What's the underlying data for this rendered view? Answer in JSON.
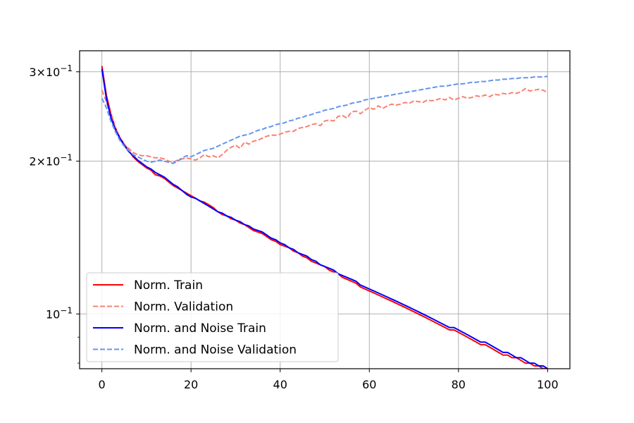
{
  "chart_data": {
    "type": "line",
    "title": "",
    "xlabel": "",
    "ylabel": "",
    "xlim": [
      -5,
      105
    ],
    "ylim": [
      0.078,
      0.33
    ],
    "yscale": "log",
    "grid": true,
    "legend_position": "lower-left",
    "x_ticks": [
      {
        "value": 0,
        "label": "0"
      },
      {
        "value": 20,
        "label": "20"
      },
      {
        "value": 40,
        "label": "40"
      },
      {
        "value": 60,
        "label": "60"
      },
      {
        "value": 80,
        "label": "80"
      },
      {
        "value": 100,
        "label": "100"
      }
    ],
    "y_ticks": [
      {
        "value": 0.1,
        "base": "10",
        "exp": "−1",
        "coef": ""
      },
      {
        "value": 0.2,
        "base": "10",
        "exp": "−1",
        "coef": "2"
      },
      {
        "value": 0.3,
        "base": "10",
        "exp": "−1",
        "coef": "3"
      }
    ],
    "y_minor_ticks": [
      0.08,
      0.09
    ],
    "x": [
      0,
      1,
      2,
      3,
      4,
      5,
      6,
      7,
      8,
      9,
      10,
      11,
      12,
      13,
      14,
      15,
      16,
      17,
      18,
      19,
      20,
      21,
      22,
      23,
      24,
      25,
      26,
      27,
      28,
      29,
      30,
      31,
      32,
      33,
      34,
      35,
      36,
      37,
      38,
      39,
      40,
      41,
      42,
      43,
      44,
      45,
      46,
      47,
      48,
      49,
      50,
      51,
      52,
      53,
      54,
      55,
      56,
      57,
      58,
      59,
      60,
      61,
      62,
      63,
      64,
      65,
      66,
      67,
      68,
      69,
      70,
      71,
      72,
      73,
      74,
      75,
      76,
      77,
      78,
      79,
      80,
      81,
      82,
      83,
      84,
      85,
      86,
      87,
      88,
      89,
      90,
      91,
      92,
      93,
      94,
      95,
      96,
      97,
      98,
      99,
      100
    ],
    "series": [
      {
        "name": "Norm. Train",
        "color": "#ff0000",
        "dash": "solid",
        "values": [
          0.308,
          0.27,
          0.248,
          0.233,
          0.223,
          0.216,
          0.21,
          0.204,
          0.2,
          0.197,
          0.194,
          0.192,
          0.188,
          0.187,
          0.185,
          0.182,
          0.179,
          0.177,
          0.175,
          0.173,
          0.171,
          0.169,
          0.167,
          0.166,
          0.164,
          0.162,
          0.159,
          0.157,
          0.156,
          0.154,
          0.153,
          0.151,
          0.15,
          0.148,
          0.146,
          0.145,
          0.144,
          0.142,
          0.14,
          0.139,
          0.137,
          0.136,
          0.135,
          0.133,
          0.132,
          0.13,
          0.129,
          0.127,
          0.126,
          0.125,
          0.124,
          0.122,
          0.121,
          0.12,
          0.118,
          0.117,
          0.116,
          0.115,
          0.113,
          0.112,
          0.111,
          0.11,
          0.109,
          0.108,
          0.107,
          0.106,
          0.105,
          0.104,
          0.103,
          0.102,
          0.101,
          0.1,
          0.099,
          0.098,
          0.097,
          0.096,
          0.095,
          0.094,
          0.093,
          0.093,
          0.092,
          0.091,
          0.09,
          0.089,
          0.088,
          0.087,
          0.087,
          0.086,
          0.085,
          0.084,
          0.083,
          0.083,
          0.082,
          0.082,
          0.081,
          0.08,
          0.08,
          0.079,
          0.079,
          0.078,
          0.078
        ]
      },
      {
        "name": "Norm. Validation",
        "color": "#fa8072",
        "dash": "dashed",
        "values": [
          0.276,
          0.262,
          0.246,
          0.233,
          0.223,
          0.216,
          0.212,
          0.208,
          0.206,
          0.205,
          0.205,
          0.204,
          0.203,
          0.203,
          0.202,
          0.2,
          0.199,
          0.201,
          0.202,
          0.203,
          0.202,
          0.201,
          0.203,
          0.206,
          0.204,
          0.205,
          0.203,
          0.206,
          0.21,
          0.213,
          0.215,
          0.212,
          0.218,
          0.216,
          0.219,
          0.22,
          0.222,
          0.224,
          0.225,
          0.225,
          0.226,
          0.228,
          0.229,
          0.229,
          0.232,
          0.233,
          0.234,
          0.236,
          0.237,
          0.235,
          0.24,
          0.241,
          0.24,
          0.245,
          0.246,
          0.243,
          0.25,
          0.251,
          0.248,
          0.252,
          0.255,
          0.253,
          0.257,
          0.254,
          0.257,
          0.259,
          0.258,
          0.259,
          0.261,
          0.26,
          0.263,
          0.262,
          0.261,
          0.264,
          0.263,
          0.264,
          0.266,
          0.264,
          0.267,
          0.264,
          0.266,
          0.268,
          0.266,
          0.267,
          0.269,
          0.268,
          0.27,
          0.268,
          0.271,
          0.27,
          0.272,
          0.271,
          0.273,
          0.272,
          0.274,
          0.278,
          0.275,
          0.276,
          0.277,
          0.276,
          0.273
        ]
      },
      {
        "name": "Norm. and Noise Train",
        "color": "#0000ff",
        "dash": "solid",
        "values": [
          0.304,
          0.266,
          0.244,
          0.231,
          0.222,
          0.215,
          0.209,
          0.205,
          0.201,
          0.198,
          0.195,
          0.193,
          0.19,
          0.188,
          0.186,
          0.183,
          0.18,
          0.178,
          0.175,
          0.172,
          0.17,
          0.169,
          0.167,
          0.165,
          0.163,
          0.161,
          0.159,
          0.158,
          0.156,
          0.155,
          0.153,
          0.152,
          0.15,
          0.149,
          0.147,
          0.146,
          0.145,
          0.143,
          0.141,
          0.14,
          0.138,
          0.137,
          0.135,
          0.134,
          0.132,
          0.131,
          0.13,
          0.128,
          0.127,
          0.125,
          0.124,
          0.123,
          0.122,
          0.12,
          0.119,
          0.118,
          0.117,
          0.116,
          0.114,
          0.113,
          0.112,
          0.111,
          0.11,
          0.109,
          0.108,
          0.107,
          0.106,
          0.105,
          0.104,
          0.103,
          0.102,
          0.101,
          0.1,
          0.099,
          0.098,
          0.097,
          0.096,
          0.095,
          0.094,
          0.094,
          0.093,
          0.092,
          0.091,
          0.09,
          0.089,
          0.088,
          0.088,
          0.087,
          0.086,
          0.085,
          0.084,
          0.084,
          0.083,
          0.082,
          0.082,
          0.081,
          0.08,
          0.08,
          0.079,
          0.079,
          0.078
        ]
      },
      {
        "name": "Norm. and Noise Validation",
        "color": "#6495ed",
        "dash": "dashed",
        "values": [
          0.266,
          0.255,
          0.24,
          0.229,
          0.22,
          0.214,
          0.21,
          0.206,
          0.204,
          0.202,
          0.2,
          0.199,
          0.2,
          0.201,
          0.2,
          0.199,
          0.198,
          0.2,
          0.203,
          0.205,
          0.204,
          0.206,
          0.208,
          0.21,
          0.211,
          0.212,
          0.214,
          0.216,
          0.218,
          0.22,
          0.222,
          0.224,
          0.225,
          0.226,
          0.228,
          0.23,
          0.231,
          0.233,
          0.234,
          0.236,
          0.237,
          0.238,
          0.24,
          0.241,
          0.243,
          0.244,
          0.246,
          0.247,
          0.249,
          0.25,
          0.252,
          0.253,
          0.254,
          0.256,
          0.257,
          0.258,
          0.26,
          0.261,
          0.262,
          0.264,
          0.265,
          0.266,
          0.267,
          0.268,
          0.269,
          0.27,
          0.271,
          0.272,
          0.273,
          0.274,
          0.275,
          0.276,
          0.277,
          0.278,
          0.279,
          0.28,
          0.281,
          0.281,
          0.282,
          0.283,
          0.284,
          0.284,
          0.285,
          0.286,
          0.286,
          0.287,
          0.287,
          0.288,
          0.289,
          0.289,
          0.29,
          0.29,
          0.291,
          0.291,
          0.292,
          0.292,
          0.292,
          0.293,
          0.293,
          0.293,
          0.294
        ]
      }
    ]
  }
}
